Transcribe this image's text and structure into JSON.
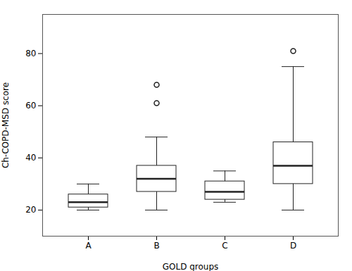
{
  "chart_data": {
    "type": "box",
    "xlabel": "GOLD groups",
    "ylabel": "Ch-COPD-MSD score",
    "categories": [
      "A",
      "B",
      "C",
      "D"
    ],
    "boxes": [
      {
        "median": 23,
        "q1": 21,
        "q3": 26,
        "whisker_low": 20,
        "whisker_high": 30,
        "fliers": []
      },
      {
        "median": 32,
        "q1": 27,
        "q3": 37,
        "whisker_low": 20,
        "whisker_high": 48,
        "fliers": [
          61,
          68
        ]
      },
      {
        "median": 27,
        "q1": 24,
        "q3": 31,
        "whisker_low": 23,
        "whisker_high": 35,
        "fliers": []
      },
      {
        "median": 37,
        "q1": 30,
        "q3": 46,
        "whisker_low": 20,
        "whisker_high": 75,
        "fliers": [
          81
        ]
      }
    ],
    "ylim": [
      10,
      95
    ],
    "yticks": [
      20,
      40,
      60,
      80
    ],
    "color": "#222222"
  }
}
